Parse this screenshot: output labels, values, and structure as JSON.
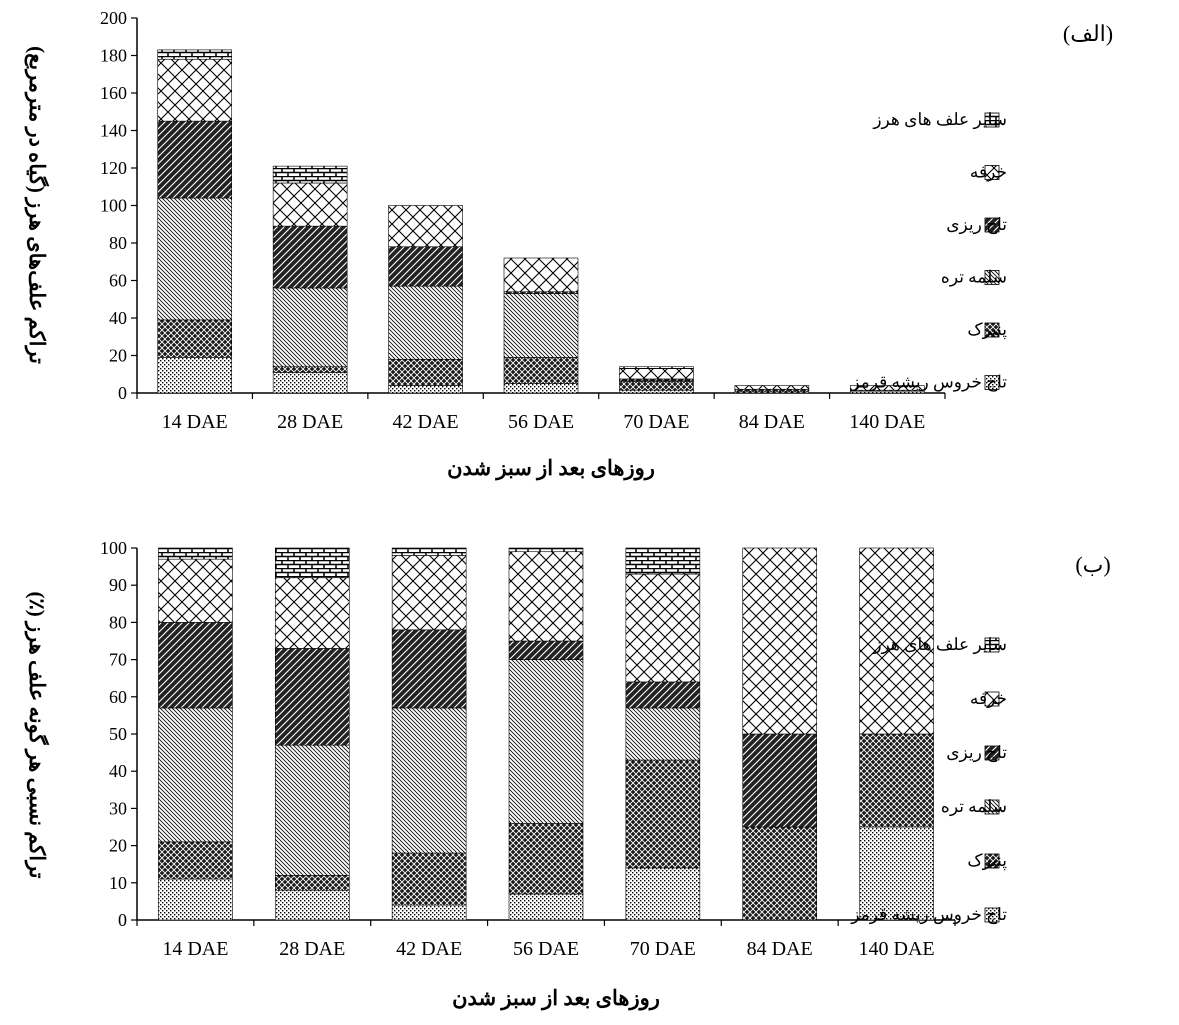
{
  "colors": {
    "ink": "#000000",
    "paper": "#ffffff"
  },
  "legend": {
    "items": [
      {
        "label": "سایر علف های هرز",
        "pattern": "pat-brick",
        "icon": "brick-pattern-icon"
      },
      {
        "label": "خرفه",
        "pattern": "pat-lattice",
        "icon": "lattice-pattern-icon"
      },
      {
        "label": "تاج ریزی",
        "pattern": "pat-dark",
        "icon": "dark-diagonal-pattern-icon"
      },
      {
        "label": "سلمه تره",
        "pattern": "pat-fine",
        "icon": "fine-diagonal-pattern-icon"
      },
      {
        "label": "پنیرک",
        "pattern": "pat-cross",
        "icon": "crosshatch-pattern-icon"
      },
      {
        "label": "تاج خروس ریشه قرمز",
        "pattern": "pat-dots",
        "icon": "dotted-pattern-icon"
      }
    ]
  },
  "chart_data": [
    {
      "type": "bar",
      "stacked": true,
      "title": "(الف)",
      "xlabel": "روزهای بعد از سبز شدن",
      "ylabel": "تراکم علف‌های هرز (گیاه در مترمربع)",
      "ylim": [
        0,
        200
      ],
      "yticks": [
        0,
        20,
        40,
        60,
        80,
        100,
        120,
        140,
        160,
        180,
        200
      ],
      "grid": false,
      "legend_position": "right",
      "categories": [
        "14 DAE",
        "28 DAE",
        "42 DAE",
        "56 DAE",
        "70 DAE",
        "84 DAE",
        "140 DAE"
      ],
      "series": [
        {
          "name": "تاج خروس ریشه قرمز",
          "values": [
            19,
            11,
            4,
            5,
            1.5,
            0,
            1
          ]
        },
        {
          "name": "پنیرک",
          "values": [
            20,
            3,
            14,
            14,
            4.5,
            1,
            0.5
          ]
        },
        {
          "name": "سلمه تره",
          "values": [
            65,
            42,
            39,
            34,
            0.5,
            0,
            0
          ]
        },
        {
          "name": "تاج ریزی",
          "values": [
            41,
            33,
            21,
            1,
            1,
            1,
            0
          ]
        },
        {
          "name": "خرفه",
          "values": [
            33,
            23,
            22,
            18,
            5.5,
            2,
            2.5
          ]
        },
        {
          "name": "سایر علف های هرز",
          "values": [
            5,
            9,
            0,
            0,
            1,
            0,
            0
          ]
        }
      ]
    },
    {
      "type": "bar",
      "stacked": true,
      "title": "(ب)",
      "xlabel": "روزهای بعد از سبز شدن",
      "ylabel": "تراکم نسبی هر گونه علف هرز (٪)",
      "ylim": [
        0,
        100
      ],
      "yticks": [
        0,
        10,
        20,
        30,
        40,
        50,
        60,
        70,
        80,
        90,
        100
      ],
      "grid": false,
      "legend_position": "right",
      "categories": [
        "14 DAE",
        "28 DAE",
        "42 DAE",
        "56 DAE",
        "70 DAE",
        "84 DAE",
        "140 DAE"
      ],
      "series": [
        {
          "name": "تاج خروس ریشه قرمز",
          "values": [
            11,
            8,
            4,
            7,
            14,
            0,
            25
          ]
        },
        {
          "name": "پنیرک",
          "values": [
            10,
            4,
            14,
            19,
            29,
            25,
            25
          ]
        },
        {
          "name": "سلمه تره",
          "values": [
            36,
            35,
            39,
            44,
            14,
            0,
            0
          ]
        },
        {
          "name": "تاج ریزی",
          "values": [
            23,
            26,
            21,
            5,
            7,
            25,
            0
          ]
        },
        {
          "name": "خرفه",
          "values": [
            17,
            19,
            20,
            24,
            29,
            50,
            50
          ]
        },
        {
          "name": "سایر علف های هرز",
          "values": [
            3,
            8,
            2,
            1,
            7,
            0,
            0
          ]
        }
      ]
    }
  ]
}
